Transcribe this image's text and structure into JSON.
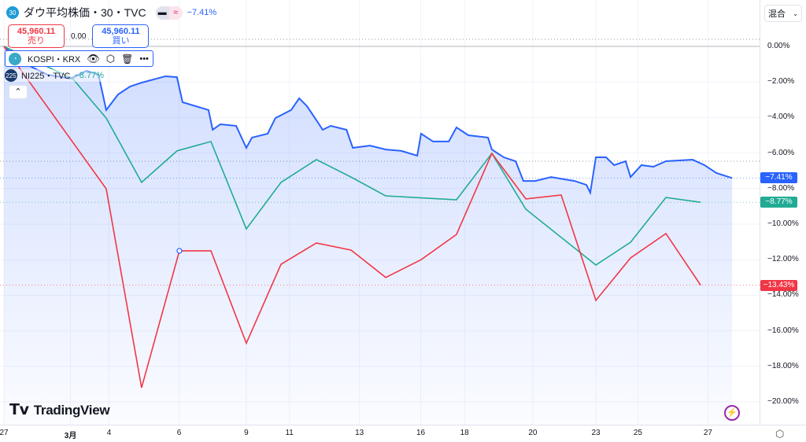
{
  "header": {
    "symbol_badge": "30",
    "title": "ダウ平均株価・30・TVC",
    "change": "−7.41%",
    "sell_price": "45,960.11",
    "sell_label": "売り",
    "spread": "0.00",
    "buy_price": "45,960.11",
    "buy_label": "買い"
  },
  "overlays": [
    {
      "name": "KOSPI・KRX"
    },
    {
      "badge": "225",
      "name": "NI225・TVC",
      "change": "−8.77%"
    }
  ],
  "scale_mode": "混合",
  "brand": "TradingView",
  "colors": {
    "dow": "#2962ff",
    "nikkei": "#22ab94",
    "kospi": "#f23645"
  },
  "chart_data": {
    "type": "line",
    "ylim": [
      -21,
      1.5
    ],
    "yticks": [
      "0.00%",
      "-2.00%",
      "-4.00%",
      "-6.00%",
      "-8.00%",
      "-10.00%",
      "-12.00%",
      "-14.00%",
      "-16.00%",
      "-18.00%",
      "-20.00%"
    ],
    "ytick_values": [
      0,
      -2,
      -4,
      -6,
      -8,
      -10,
      -12,
      -14,
      -16,
      -18,
      -20
    ],
    "xticks": [
      {
        "label": "27",
        "x": 0
      },
      {
        "label": "3月",
        "x": 1.9
      },
      {
        "label": "4",
        "x": 3.0
      },
      {
        "label": "6",
        "x": 5.0
      },
      {
        "label": "9",
        "x": 6.92
      },
      {
        "label": "11",
        "x": 8.15
      },
      {
        "label": "13",
        "x": 10.15
      },
      {
        "label": "16",
        "x": 11.9
      },
      {
        "label": "18",
        "x": 13.15
      },
      {
        "label": "20",
        "x": 15.1
      },
      {
        "label": "23",
        "x": 16.9
      },
      {
        "label": "25",
        "x": 18.1
      },
      {
        "label": "27",
        "x": 20.1
      }
    ],
    "series": [
      {
        "name": "ダウ平均株価",
        "last": "-7.41%",
        "last_value": -7.41,
        "color": "#2962ff",
        "fill": true,
        "points": [
          [
            0,
            0
          ],
          [
            0.56,
            -0.93
          ],
          [
            1.24,
            -1.59
          ],
          [
            1.91,
            -1.81
          ],
          [
            2.36,
            -1.37
          ],
          [
            2.7,
            -1.59
          ],
          [
            2.92,
            -3.58
          ],
          [
            3.26,
            -2.7
          ],
          [
            3.6,
            -2.26
          ],
          [
            3.93,
            -2.04
          ],
          [
            4.61,
            -1.68
          ],
          [
            4.94,
            -1.73
          ],
          [
            5.1,
            -3.14
          ],
          [
            5.84,
            -3.58
          ],
          [
            5.96,
            -4.69
          ],
          [
            6.18,
            -4.38
          ],
          [
            6.63,
            -4.47
          ],
          [
            6.92,
            -5.71
          ],
          [
            7.08,
            -5.13
          ],
          [
            7.53,
            -4.91
          ],
          [
            7.75,
            -4.03
          ],
          [
            8.2,
            -3.58
          ],
          [
            8.43,
            -2.92
          ],
          [
            8.65,
            -3.36
          ],
          [
            8.88,
            -4.03
          ],
          [
            9.1,
            -4.69
          ],
          [
            9.33,
            -4.47
          ],
          [
            9.78,
            -4.69
          ],
          [
            9.96,
            -5.71
          ],
          [
            10.45,
            -5.58
          ],
          [
            10.9,
            -5.8
          ],
          [
            11.35,
            -5.88
          ],
          [
            11.8,
            -6.15
          ],
          [
            11.91,
            -4.91
          ],
          [
            12.25,
            -5.35
          ],
          [
            12.7,
            -5.35
          ],
          [
            12.92,
            -4.56
          ],
          [
            13.26,
            -5.0
          ],
          [
            13.82,
            -5.13
          ],
          [
            13.93,
            -5.8
          ],
          [
            14.27,
            -6.24
          ],
          [
            14.61,
            -6.46
          ],
          [
            14.83,
            -7.57
          ],
          [
            15.17,
            -7.57
          ],
          [
            15.62,
            -7.35
          ],
          [
            16.29,
            -7.57
          ],
          [
            16.63,
            -7.79
          ],
          [
            16.74,
            -8.23
          ],
          [
            16.9,
            -6.24
          ],
          [
            17.19,
            -6.24
          ],
          [
            17.42,
            -6.68
          ],
          [
            17.75,
            -6.46
          ],
          [
            17.89,
            -7.35
          ],
          [
            18.2,
            -6.68
          ],
          [
            18.54,
            -6.77
          ],
          [
            18.9,
            -6.46
          ],
          [
            19.66,
            -6.37
          ],
          [
            20.0,
            -6.68
          ],
          [
            20.34,
            -7.12
          ],
          [
            20.79,
            -7.41
          ]
        ]
      },
      {
        "name": "NI225",
        "last": "-8.77%",
        "last_value": -8.77,
        "color": "#22ab94",
        "points": [
          [
            0,
            0
          ],
          [
            1.96,
            -1.81
          ],
          [
            2.92,
            -4.03
          ],
          [
            3.93,
            -7.65
          ],
          [
            4.94,
            -5.88
          ],
          [
            5.91,
            -5.35
          ],
          [
            6.92,
            -10.27
          ],
          [
            7.91,
            -7.65
          ],
          [
            8.92,
            -6.37
          ],
          [
            9.91,
            -7.35
          ],
          [
            10.9,
            -8.41
          ],
          [
            12.92,
            -8.63
          ],
          [
            13.93,
            -6.02
          ],
          [
            14.9,
            -9.16
          ],
          [
            16.9,
            -12.3
          ],
          [
            17.89,
            -11.02
          ],
          [
            18.9,
            -8.5
          ],
          [
            19.89,
            -8.77
          ]
        ]
      },
      {
        "name": "KOSPI",
        "last": "-13.43%",
        "last_value": -13.43,
        "color": "#f23645",
        "points": [
          [
            0,
            0
          ],
          [
            2.92,
            -8.01
          ],
          [
            3.93,
            -19.2
          ],
          [
            5.01,
            -11.5
          ],
          [
            5.91,
            -11.5
          ],
          [
            6.92,
            -16.7
          ],
          [
            7.91,
            -12.26
          ],
          [
            8.92,
            -11.06
          ],
          [
            9.91,
            -11.46
          ],
          [
            10.9,
            -13.0
          ],
          [
            11.91,
            -12.0
          ],
          [
            12.92,
            -10.58
          ],
          [
            13.93,
            -6.02
          ],
          [
            14.9,
            -8.58
          ],
          [
            15.91,
            -8.36
          ],
          [
            16.9,
            -14.29
          ],
          [
            17.89,
            -11.9
          ],
          [
            18.9,
            -10.53
          ],
          [
            19.89,
            -13.43
          ]
        ]
      }
    ]
  }
}
